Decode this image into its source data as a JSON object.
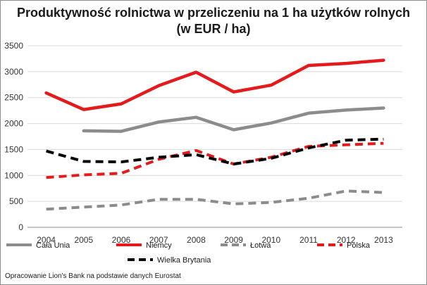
{
  "chart_data": {
    "type": "line",
    "title": "Produktywność rolnictwa w przeliczeniu na 1 ha użytków rolnych",
    "subtitle": "(w EUR / ha)",
    "xlabel": "",
    "ylabel": "",
    "categories": [
      "2004",
      "2005",
      "2006",
      "2007",
      "2008",
      "2009",
      "2010",
      "2011",
      "2012",
      "2013"
    ],
    "yticks": [
      "0",
      "500",
      "1000",
      "1500",
      "2000",
      "2500",
      "3000",
      "3500"
    ],
    "ylim": [
      0,
      3500
    ],
    "grid": true,
    "legend_position": "bottom",
    "series": [
      {
        "name": "Cała Unia",
        "color": "#8c8c8c",
        "dashed": false,
        "values": [
          null,
          1860,
          1850,
          2030,
          2120,
          1880,
          2010,
          2200,
          2260,
          2300
        ]
      },
      {
        "name": "Niemcy",
        "color": "#e41a1c",
        "dashed": false,
        "values": [
          2590,
          2270,
          2380,
          2730,
          2990,
          2610,
          2740,
          3120,
          3160,
          3220
        ]
      },
      {
        "name": "Łotwa",
        "color": "#8c8c8c",
        "dashed": true,
        "values": [
          350,
          390,
          430,
          540,
          540,
          450,
          480,
          560,
          700,
          670
        ]
      },
      {
        "name": "Polska",
        "color": "#e41a1c",
        "dashed": true,
        "values": [
          960,
          1010,
          1040,
          1310,
          1480,
          1220,
          1350,
          1560,
          1590,
          1620
        ]
      },
      {
        "name": "Wielka Brytania",
        "color": "#000000",
        "dashed": true,
        "values": [
          1470,
          1270,
          1260,
          1350,
          1400,
          1220,
          1330,
          1530,
          1680,
          1700
        ]
      }
    ]
  },
  "source_note": "Opracowanie Lion's Bank na podstawie danych Eurostat"
}
